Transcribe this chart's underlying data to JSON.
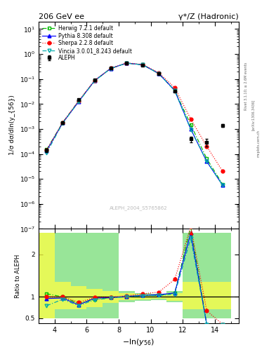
{
  "title_left": "206 GeV ee",
  "title_right": "γ*/Z (Hadronic)",
  "ylabel_main": "1/σ dσ/dln(y_{56})",
  "ylabel_ratio": "Ratio to ALEPH",
  "watermark": "ALEPH_2004_S5765862",
  "rivet_text": "Rivet 3.1.10; ≥ 2.6M events",
  "arxiv_text": "[arXiv:1306.3436]",
  "mcplots_text": "mcplots.cern.ch",
  "x_data": [
    3.5,
    4.5,
    5.5,
    6.5,
    7.5,
    8.5,
    9.5,
    10.5,
    11.5,
    12.5,
    13.5,
    14.5
  ],
  "aleph_y": [
    0.00014,
    0.0018,
    0.0155,
    0.09,
    0.27,
    0.43,
    0.36,
    0.16,
    0.032,
    0.0004,
    0.0003,
    0.0014
  ],
  "aleph_yerr": [
    2e-05,
    0.00015,
    0.0006,
    0.002,
    0.005,
    0.008,
    0.008,
    0.003,
    0.0015,
    0.0001,
    0.0001,
    0.0002
  ],
  "herwig_y": [
    0.00015,
    0.0018,
    0.013,
    0.085,
    0.265,
    0.43,
    0.37,
    0.165,
    0.035,
    0.0015,
    6.5e-05,
    6e-06
  ],
  "herwig_color": "#00bb00",
  "herwig_label": "Herwig 7.2.1 default",
  "pythia_y": [
    0.000135,
    0.00175,
    0.0125,
    0.087,
    0.265,
    0.435,
    0.372,
    0.168,
    0.035,
    0.001,
    5e-05,
    5.5e-06
  ],
  "pythia_color": "#0000ff",
  "pythia_label": "Pythia 8.308 default",
  "sherpa_y": [
    0.00014,
    0.0018,
    0.0135,
    0.088,
    0.268,
    0.44,
    0.385,
    0.178,
    0.045,
    0.0025,
    0.0002,
    2e-05
  ],
  "sherpa_color": "#ff0000",
  "sherpa_label": "Sherpa 2.2.8 default",
  "vincia_y": [
    0.00011,
    0.0017,
    0.0122,
    0.084,
    0.262,
    0.432,
    0.37,
    0.165,
    0.034,
    0.00095,
    5e-05,
    5.5e-06
  ],
  "vincia_color": "#00aaaa",
  "vincia_label": "Vincia 3.0.01_8.243 default",
  "ratio_herwig": [
    1.07,
    1.0,
    0.84,
    0.94,
    0.98,
    1.0,
    1.03,
    1.03,
    1.09,
    3.75,
    0.22,
    0.004
  ],
  "ratio_pythia": [
    0.96,
    0.97,
    0.81,
    0.97,
    0.98,
    1.01,
    1.033,
    1.05,
    1.09,
    2.5,
    0.17,
    0.004
  ],
  "ratio_sherpa": [
    1.0,
    1.0,
    0.87,
    0.98,
    0.99,
    1.023,
    1.07,
    1.11,
    1.41,
    6.25,
    0.67,
    0.014
  ],
  "ratio_vincia": [
    0.79,
    0.94,
    0.79,
    0.93,
    0.97,
    1.005,
    1.028,
    1.03,
    1.06,
    2.375,
    0.17,
    0.004
  ],
  "band_edges": [
    3.0,
    4.0,
    5.0,
    6.0,
    7.0,
    8.0,
    9.0,
    10.0,
    11.0,
    12.0,
    13.0,
    14.0,
    15.0
  ],
  "band_green_lo": [
    0.5,
    0.5,
    0.5,
    0.5,
    0.5,
    0.87,
    0.91,
    0.93,
    0.87,
    0.5,
    0.5,
    0.5
  ],
  "band_green_hi": [
    2.5,
    2.5,
    2.5,
    2.5,
    2.5,
    1.13,
    1.09,
    1.07,
    1.13,
    2.5,
    2.5,
    2.5
  ],
  "band_yellow_lo": [
    0.5,
    0.7,
    0.7,
    0.75,
    0.85,
    0.92,
    0.94,
    0.96,
    0.91,
    0.7,
    0.7,
    0.7
  ],
  "band_yellow_hi": [
    2.5,
    1.35,
    1.25,
    1.18,
    1.13,
    1.08,
    1.06,
    1.04,
    1.09,
    1.35,
    1.35,
    1.35
  ],
  "xlim": [
    3.0,
    15.5
  ],
  "ylim_main": [
    1e-07,
    20.0
  ],
  "ylim_ratio": [
    0.38,
    2.6
  ],
  "ratio_yticks": [
    0.5,
    1.0,
    2.0
  ],
  "main_xticks": [
    4,
    6,
    8,
    10,
    12,
    14
  ],
  "ratio_xticks": [
    4,
    6,
    8,
    10,
    12,
    14
  ]
}
